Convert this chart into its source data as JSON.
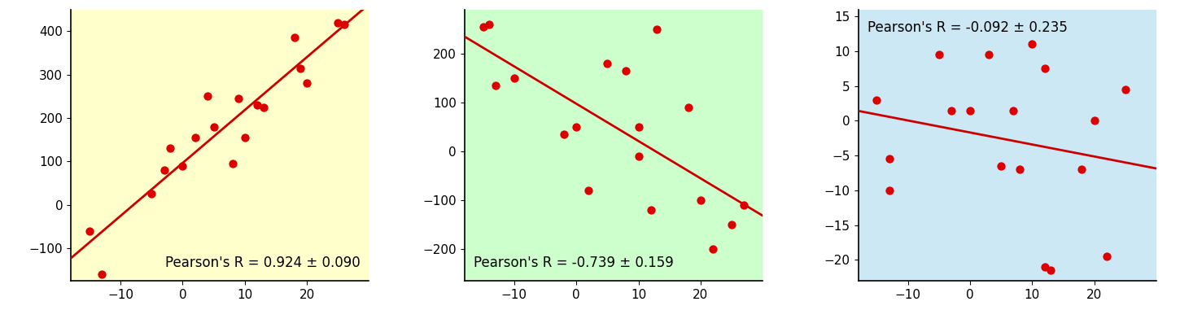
{
  "plots": [
    {
      "bg_color": "#ffffcc",
      "pearson_text": "Pearson's R = 0.924 ± 0.090",
      "pearson_loc": "lower right",
      "x": [
        -15,
        -13,
        -5,
        -3,
        -2,
        0,
        2,
        4,
        5,
        8,
        9,
        10,
        12,
        13,
        18,
        19,
        20,
        25,
        26
      ],
      "y": [
        -60,
        -160,
        25,
        80,
        130,
        90,
        155,
        250,
        180,
        95,
        245,
        155,
        230,
        225,
        385,
        315,
        280,
        420,
        415
      ],
      "xlim": [
        -18,
        30
      ],
      "ylim": [
        -175,
        450
      ],
      "xticks": [
        -10,
        0,
        10,
        20
      ],
      "yticks": [
        -100,
        0,
        100,
        200,
        300,
        400
      ]
    },
    {
      "bg_color": "#ccffcc",
      "pearson_text": "Pearson's R = -0.739 ± 0.159",
      "pearson_loc": "lower left",
      "x": [
        -15,
        -14,
        -13,
        -10,
        -2,
        0,
        2,
        5,
        8,
        10,
        10,
        12,
        13,
        18,
        20,
        22,
        25,
        27
      ],
      "y": [
        255,
        260,
        135,
        150,
        35,
        50,
        -80,
        180,
        165,
        -10,
        50,
        -120,
        250,
        90,
        -100,
        -200,
        -150,
        -110
      ],
      "xlim": [
        -18,
        30
      ],
      "ylim": [
        -265,
        290
      ],
      "xticks": [
        -10,
        0,
        10,
        20
      ],
      "yticks": [
        -200,
        -100,
        0,
        100,
        200
      ]
    },
    {
      "bg_color": "#cce8f4",
      "pearson_text": "Pearson's R = -0.092 ± 0.235",
      "pearson_loc": "upper left",
      "x": [
        -15,
        -13,
        -13,
        -5,
        -3,
        0,
        3,
        5,
        7,
        8,
        10,
        12,
        12,
        13,
        18,
        20,
        22,
        25
      ],
      "y": [
        3,
        -10,
        -5.5,
        9.5,
        1.5,
        1.5,
        9.5,
        -6.5,
        1.5,
        -7,
        11,
        -21,
        7.5,
        -21.5,
        -7,
        0,
        -19.5,
        4.5
      ],
      "xlim": [
        -18,
        30
      ],
      "ylim": [
        -23,
        16
      ],
      "xticks": [
        -10,
        0,
        10,
        20
      ],
      "yticks": [
        -20,
        -15,
        -10,
        -5,
        0,
        5,
        10,
        15
      ]
    }
  ],
  "dot_color": "#dd0000",
  "line_color": "#cc0000",
  "dot_size": 55,
  "line_width": 2.0,
  "font_size": 12,
  "tick_font_size": 11
}
